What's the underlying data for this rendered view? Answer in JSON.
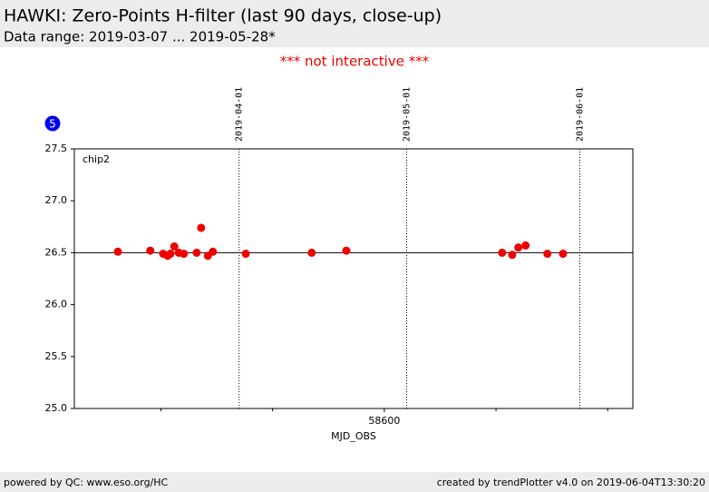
{
  "header": {
    "title": "HAWKI: Zero-Points H-filter (last 90 days, close-up)",
    "subtitle": "Data range: 2019-03-07 ... 2019-05-28*"
  },
  "notice": "*** not interactive ***",
  "badge": "5",
  "chart_data": {
    "type": "scatter",
    "color": "#ee0000",
    "x_label": "MJD_OBS",
    "legend_text": "chip2",
    "x": [
      58552.3,
      58558.1,
      58560.4,
      58561.2,
      58561.7,
      58562.4,
      58563.2,
      58564.1,
      58566.4,
      58567.2,
      58568.4,
      58569.3,
      58575.2,
      58587.0,
      58593.2,
      58621.1,
      58622.9,
      58624.0,
      58625.3,
      58629.2,
      58632.0
    ],
    "values": [
      26.51,
      26.52,
      26.49,
      26.47,
      26.49,
      26.56,
      26.5,
      26.49,
      26.5,
      26.74,
      26.47,
      26.51,
      26.49,
      26.5,
      26.52,
      26.5,
      26.48,
      26.55,
      26.57,
      26.49,
      26.49
    ],
    "xlim": [
      58544.5,
      58644.5
    ],
    "xticks": [
      58600
    ],
    "xticks_minor": [
      58560,
      58580,
      58620,
      58640
    ],
    "ylim": [
      25.0,
      27.5
    ],
    "yticks": [
      {
        "value": 25.0,
        "label": "25.0"
      },
      {
        "value": 25.5,
        "label": "25.5"
      },
      {
        "value": 26.0,
        "label": "26.0"
      },
      {
        "value": 26.5,
        "label": "26.5"
      },
      {
        "value": 27.0,
        "label": "27.0"
      },
      {
        "value": 27.5,
        "label": "27.5"
      }
    ],
    "reference_line": 26.5,
    "date_lines": [
      {
        "value": 58574,
        "label": "2019-04-01"
      },
      {
        "value": 58604,
        "label": "2019-05-01"
      },
      {
        "value": 58635,
        "label": "2019-06-01"
      }
    ]
  },
  "footer": {
    "left": "powered by QC: www.eso.org/HC",
    "right": "created by trendPlotter v4.0 on 2019-06-04T13:30:20"
  }
}
